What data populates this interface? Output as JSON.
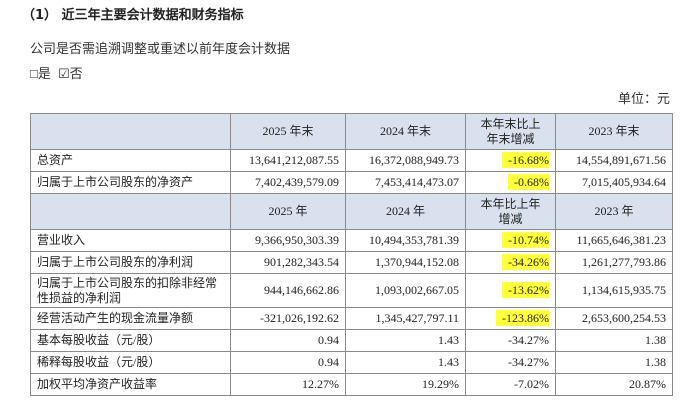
{
  "heading": "（1） 近三年主要会计数据和财务指标",
  "question": "公司是否需追溯调整或重述以前年度会计数据",
  "options": [
    "□是",
    "☑否"
  ],
  "unit": "单位：元",
  "table": {
    "highlight_color": "#ffff3a",
    "sections": [
      {
        "header": [
          "2025 年末",
          "2024 年末",
          "本年末比上\n年末增减",
          "2023 年末"
        ],
        "rows": [
          {
            "cells": [
              "总资产",
              "13,641,212,087.55",
              "16,372,088,949.73",
              "-16.68%",
              "14,554,891,671.56"
            ],
            "highlighted": true
          },
          {
            "cells": [
              "归属于上市公司股东的净资产",
              "7,402,439,579.09",
              "7,453,414,473.07",
              "-0.68%",
              "7,015,405,934.64"
            ],
            "highlighted": true
          }
        ]
      },
      {
        "header": [
          "2025 年",
          "2024 年",
          "本年比上年\n增减",
          "2023 年"
        ],
        "rows": [
          {
            "cells": [
              "营业收入",
              "9,366,950,303.39",
              "10,494,353,781.39",
              "-10.74%",
              "11,665,646,381.23"
            ],
            "highlighted": true
          },
          {
            "cells": [
              "归属于上市公司股东的净利润",
              "901,282,343.54",
              "1,370,944,152.08",
              "-34.26%",
              "1,261,277,793.86"
            ],
            "highlighted": true
          },
          {
            "cells": [
              "归属于上市公司股东的扣除非经常\n性损益的净利润",
              "944,146,662.86",
              "1,093,002,667.05",
              "-13.62%",
              "1,134,615,935.75"
            ],
            "highlighted": true
          },
          {
            "cells": [
              "经营活动产生的现金流量净额",
              "-321,026,192.62",
              "1,345,427,797.11",
              "-123.86%",
              "2,653,600,254.53"
            ],
            "highlighted": true
          },
          {
            "cells": [
              "基本每股收益（元/股）",
              "0.94",
              "1.43",
              "-34.27%",
              "1.38"
            ],
            "highlighted": false
          },
          {
            "cells": [
              "稀释每股收益（元/股）",
              "0.94",
              "1.43",
              "-34.27%",
              "1.38"
            ],
            "highlighted": false
          },
          {
            "cells": [
              "加权平均净资产收益率",
              "12.27%",
              "19.29%",
              "-7.02%",
              "20.87%"
            ],
            "highlighted": false
          }
        ]
      }
    ]
  }
}
